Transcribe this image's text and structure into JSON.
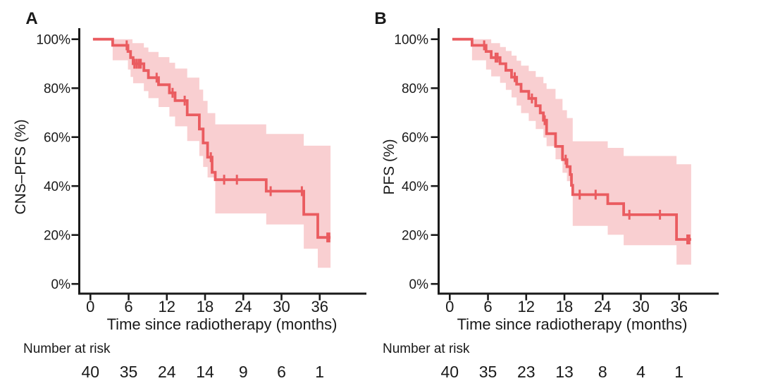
{
  "figure": {
    "kind": "kaplan-meier-survival-figure",
    "background": "#ffffff",
    "curve_color": "#ea5c60",
    "band_color": "#f9cfd1",
    "axis_color": "#1a1a1a",
    "text_color": "#1a1a1a"
  },
  "chart_data": [
    {
      "type": "line",
      "subtype": "kaplan-meier-step",
      "panel": "A",
      "ylabel": "CNS–PFS (%)",
      "xlabel": "Time since radiotherapy (months)",
      "legend": "none",
      "grid": false,
      "xlim": [
        0,
        42
      ],
      "ylim": [
        0,
        103
      ],
      "x_ticks": [
        0,
        6,
        12,
        18,
        24,
        30,
        36
      ],
      "y_tick_values": [
        100,
        80,
        60,
        40,
        20,
        0
      ],
      "y_tick_labels": [
        "100%",
        "80%",
        "60%",
        "40%",
        "20%",
        "0%"
      ],
      "t_end": 37.7,
      "km_steps": [
        [
          0.4,
          100
        ],
        [
          3.5,
          97.5
        ],
        [
          5.9,
          95
        ],
        [
          6.3,
          92.5
        ],
        [
          6.7,
          90
        ],
        [
          8.4,
          87.2
        ],
        [
          9.1,
          84.3
        ],
        [
          10.7,
          81.4
        ],
        [
          12.4,
          78.1
        ],
        [
          13.3,
          74.9
        ],
        [
          15.2,
          69.1
        ],
        [
          17.1,
          63.3
        ],
        [
          17.7,
          57.6
        ],
        [
          18.4,
          51.8
        ],
        [
          19.1,
          45.6
        ],
        [
          19.6,
          42.6
        ],
        [
          27.6,
          37.9
        ],
        [
          33.5,
          28.4
        ],
        [
          35.7,
          19
        ],
        [
          37.7,
          19
        ]
      ],
      "censor_marks": [
        [
          5.7,
          97.5
        ],
        [
          6.9,
          90
        ],
        [
          7.25,
          90
        ],
        [
          7.6,
          90
        ],
        [
          7.9,
          90
        ],
        [
          10.4,
          84.3
        ],
        [
          12.9,
          78.1
        ],
        [
          14.8,
          74.9
        ],
        [
          18.9,
          51.8
        ],
        [
          21,
          42.6
        ],
        [
          23,
          42.6
        ],
        [
          28.3,
          37.9
        ],
        [
          33.2,
          37.9
        ],
        [
          37.2,
          19
        ],
        [
          37.5,
          19
        ]
      ],
      "ci_upper": [
        [
          3.5,
          100
        ],
        [
          6.6,
          98.4
        ],
        [
          8.4,
          96.6
        ],
        [
          9.1,
          94.8
        ],
        [
          10.7,
          92.7
        ],
        [
          12.4,
          90.4
        ],
        [
          13.3,
          88
        ],
        [
          15.2,
          84.3
        ],
        [
          17.1,
          79.4
        ],
        [
          17.7,
          74.8
        ],
        [
          18.4,
          69.8
        ],
        [
          19.6,
          65.2
        ],
        [
          27.6,
          61.3
        ],
        [
          33.5,
          56.5
        ],
        [
          37.7,
          56.5
        ]
      ],
      "ci_lower": [
        [
          3.5,
          91.4
        ],
        [
          5.9,
          87.6
        ],
        [
          6.3,
          84.6
        ],
        [
          6.7,
          82
        ],
        [
          8.4,
          78.8
        ],
        [
          9.1,
          75.9
        ],
        [
          10.7,
          72.3
        ],
        [
          12.4,
          68.4
        ],
        [
          13.3,
          64.4
        ],
        [
          15.2,
          58.4
        ],
        [
          17.1,
          52.3
        ],
        [
          17.7,
          47.8
        ],
        [
          18.4,
          43.5
        ],
        [
          19.6,
          28.8
        ],
        [
          27.6,
          24.3
        ],
        [
          33.5,
          14.4
        ],
        [
          35.7,
          6.6
        ],
        [
          37.7,
          6.6
        ]
      ],
      "number_at_risk": {
        "label": "Number at risk",
        "times": [
          0,
          6,
          12,
          18,
          24,
          30,
          36
        ],
        "counts": [
          40,
          35,
          24,
          14,
          9,
          6,
          1
        ]
      }
    },
    {
      "type": "line",
      "subtype": "kaplan-meier-step",
      "panel": "B",
      "ylabel": "PFS (%)",
      "xlabel": "Time since radiotherapy (months)",
      "legend": "none",
      "grid": false,
      "xlim": [
        0,
        42
      ],
      "ylim": [
        0,
        103
      ],
      "x_ticks": [
        0,
        6,
        12,
        18,
        24,
        30,
        36
      ],
      "y_tick_values": [
        100,
        80,
        60,
        40,
        20,
        0
      ],
      "y_tick_labels": [
        "100%",
        "80%",
        "60%",
        "40%",
        "20%",
        "0%"
      ],
      "t_end": 37.9,
      "km_steps": [
        [
          0.4,
          100
        ],
        [
          3.5,
          97.5
        ],
        [
          5.7,
          95
        ],
        [
          6.5,
          92.5
        ],
        [
          7.9,
          90
        ],
        [
          8.8,
          87.3
        ],
        [
          9.7,
          84.5
        ],
        [
          10.5,
          81.6
        ],
        [
          11.2,
          78.7
        ],
        [
          12.4,
          75.8
        ],
        [
          13.5,
          72.8
        ],
        [
          14.2,
          69.9
        ],
        [
          14.7,
          66.9
        ],
        [
          15.2,
          61.4
        ],
        [
          16.6,
          56.2
        ],
        [
          17.7,
          50.8
        ],
        [
          18.4,
          47.9
        ],
        [
          18.9,
          44.7
        ],
        [
          19.1,
          40.3
        ],
        [
          19.3,
          36.5
        ],
        [
          24.8,
          32.8
        ],
        [
          27.3,
          28.3
        ],
        [
          35.6,
          18.2
        ],
        [
          37.9,
          18.2
        ]
      ],
      "censor_marks": [
        [
          5.4,
          97.5
        ],
        [
          7.2,
          92.5
        ],
        [
          7.5,
          92.5
        ],
        [
          10.2,
          84.5
        ],
        [
          12.9,
          75.8
        ],
        [
          14.9,
          66.9
        ],
        [
          18.2,
          50.8
        ],
        [
          20.4,
          36.5
        ],
        [
          22.9,
          36.5
        ],
        [
          28.2,
          28.3
        ],
        [
          33,
          28.3
        ],
        [
          37.3,
          18.2
        ],
        [
          37.6,
          18.2
        ]
      ],
      "ci_upper": [
        [
          3.5,
          100
        ],
        [
          6.5,
          98.4
        ],
        [
          7.9,
          96.8
        ],
        [
          8.8,
          95.2
        ],
        [
          9.7,
          93.3
        ],
        [
          10.5,
          91.2
        ],
        [
          11.2,
          89.2
        ],
        [
          12.4,
          87
        ],
        [
          13.5,
          84.6
        ],
        [
          14.7,
          82
        ],
        [
          15.2,
          79.7
        ],
        [
          16.6,
          75.6
        ],
        [
          17.7,
          71
        ],
        [
          18.4,
          67.8
        ],
        [
          19.3,
          58.3
        ],
        [
          24.8,
          55.6
        ],
        [
          27.3,
          52.3
        ],
        [
          35.6,
          48.9
        ],
        [
          37.9,
          48.9
        ]
      ],
      "ci_lower": [
        [
          3.5,
          91.4
        ],
        [
          5.7,
          87.6
        ],
        [
          6.5,
          84.8
        ],
        [
          7.9,
          82.2
        ],
        [
          8.8,
          79.3
        ],
        [
          9.7,
          76.2
        ],
        [
          10.5,
          72.9
        ],
        [
          11.2,
          69.8
        ],
        [
          12.4,
          66.6
        ],
        [
          13.5,
          63.3
        ],
        [
          14.7,
          59.8
        ],
        [
          15.2,
          56.3
        ],
        [
          16.6,
          50.9
        ],
        [
          17.7,
          45.4
        ],
        [
          18.4,
          42
        ],
        [
          19.3,
          23.7
        ],
        [
          24.8,
          20.1
        ],
        [
          27.3,
          15.8
        ],
        [
          35.6,
          7.9
        ],
        [
          37.9,
          7.9
        ]
      ],
      "number_at_risk": {
        "label": "Number at risk",
        "times": [
          0,
          6,
          12,
          18,
          24,
          30,
          36
        ],
        "counts": [
          40,
          35,
          23,
          13,
          8,
          4,
          1
        ]
      }
    }
  ]
}
